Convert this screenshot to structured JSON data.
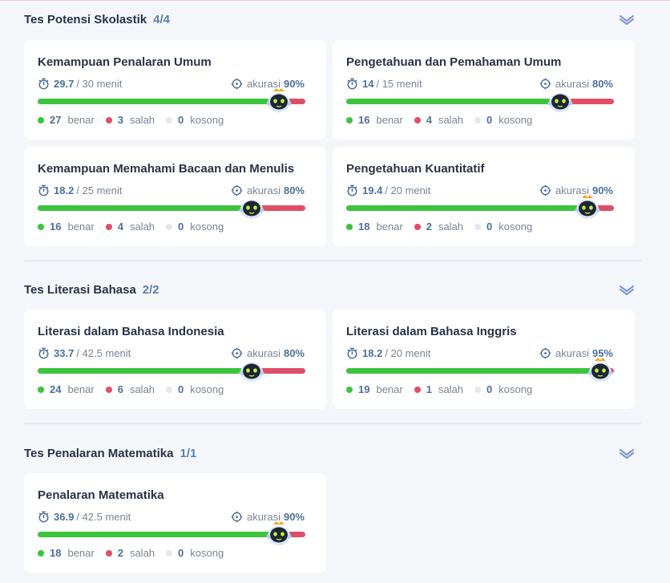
{
  "sections": [
    {
      "title": "Tes Potensi Skolastik",
      "count": "4/4",
      "cards": [
        {
          "title": "Kemampuan Penalaran Umum",
          "time_value": "29.7",
          "time_total": "/ 30 menit",
          "accuracy_label": "akurasi",
          "accuracy_value": "90%",
          "correct": "27",
          "correct_label": "benar",
          "wrong": "3",
          "wrong_label": "salah",
          "empty": "0",
          "empty_label": "kosong",
          "progress": 0.9,
          "mascot_crown": true
        },
        {
          "title": "Pengetahuan dan Pemahaman Umum",
          "time_value": "14",
          "time_total": "/ 15 menit",
          "accuracy_label": "akurasi",
          "accuracy_value": "80%",
          "correct": "16",
          "correct_label": "benar",
          "wrong": "4",
          "wrong_label": "salah",
          "empty": "0",
          "empty_label": "kosong",
          "progress": 0.8,
          "mascot_crown": false
        },
        {
          "title": "Kemampuan Memahami Bacaan dan Menulis",
          "time_value": "18.2",
          "time_total": "/ 25 menit",
          "accuracy_label": "akurasi",
          "accuracy_value": "80%",
          "correct": "16",
          "correct_label": "benar",
          "wrong": "4",
          "wrong_label": "salah",
          "empty": "0",
          "empty_label": "kosong",
          "progress": 0.8,
          "mascot_crown": false
        },
        {
          "title": "Pengetahuan Kuantitatif",
          "time_value": "19.4",
          "time_total": "/ 20 menit",
          "accuracy_label": "akurasi",
          "accuracy_value": "90%",
          "correct": "18",
          "correct_label": "benar",
          "wrong": "2",
          "wrong_label": "salah",
          "empty": "0",
          "empty_label": "kosong",
          "progress": 0.9,
          "mascot_crown": true
        }
      ]
    },
    {
      "title": "Tes Literasi Bahasa",
      "count": "2/2",
      "cards": [
        {
          "title": "Literasi dalam Bahasa Indonesia",
          "time_value": "33.7",
          "time_total": "/ 42.5 menit",
          "accuracy_label": "akurasi",
          "accuracy_value": "80%",
          "correct": "24",
          "correct_label": "benar",
          "wrong": "6",
          "wrong_label": "salah",
          "empty": "0",
          "empty_label": "kosong",
          "progress": 0.8,
          "mascot_crown": false
        },
        {
          "title": "Literasi dalam Bahasa Inggris",
          "time_value": "18.2",
          "time_total": "/ 20 menit",
          "accuracy_label": "akurasi",
          "accuracy_value": "95%",
          "correct": "19",
          "correct_label": "benar",
          "wrong": "1",
          "wrong_label": "salah",
          "empty": "0",
          "empty_label": "kosong",
          "progress": 0.95,
          "mascot_crown": true
        }
      ]
    },
    {
      "title": "Tes Penalaran Matematika",
      "count": "1/1",
      "cards": [
        {
          "title": "Penalaran Matematika",
          "time_value": "36.9",
          "time_total": "/ 42.5 menit",
          "accuracy_label": "akurasi",
          "accuracy_value": "90%",
          "correct": "18",
          "correct_label": "benar",
          "wrong": "2",
          "wrong_label": "salah",
          "empty": "0",
          "empty_label": "kosong",
          "progress": 0.9,
          "mascot_crown": true
        }
      ]
    }
  ],
  "icons": {
    "timer": "stopwatch-icon",
    "accuracy": "crosshair-icon",
    "collapse": "chevron-down-icon",
    "mascot": "robot-mascot-icon"
  },
  "colors": {
    "correct": "#3cc43c",
    "wrong": "#df4e69",
    "empty": "#e3e7ef",
    "accent": "#4e6f9e"
  }
}
